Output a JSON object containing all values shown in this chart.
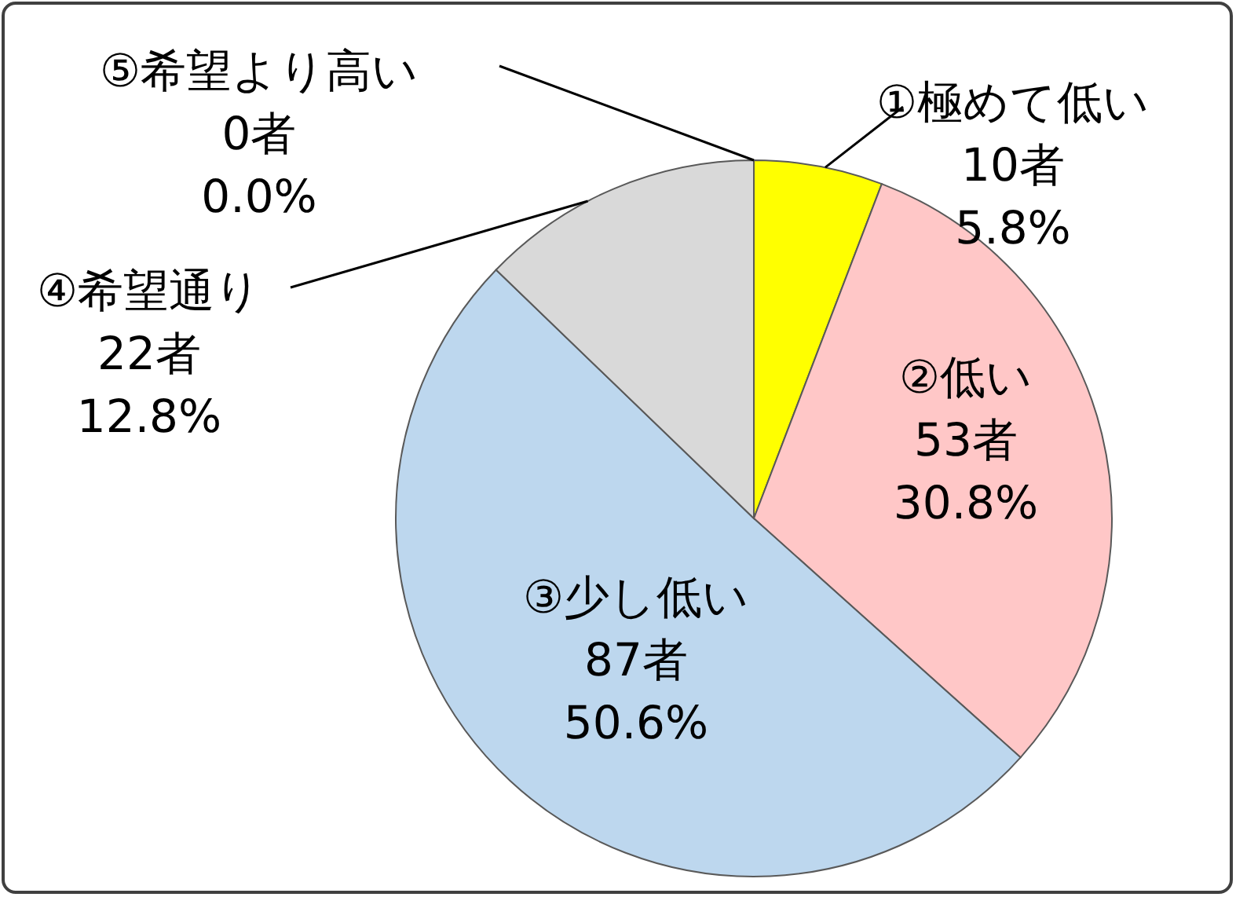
{
  "chart_data": {
    "type": "pie",
    "categories": [
      "①極めて低い",
      "②低い",
      "③少し低い",
      "④希望通り",
      "⑤希望より高い"
    ],
    "values": [
      10,
      53,
      87,
      22,
      0
    ],
    "value_labels": [
      "10者\n5.8%",
      "53者\n30.8%",
      "87者\n50.6%",
      "22者\n12.8%",
      "0者\n0.0%"
    ],
    "colors": [
      "#ffff00",
      "#ffc7c7",
      "#bdd7ee",
      "#d9d9d9",
      null
    ]
  }
}
